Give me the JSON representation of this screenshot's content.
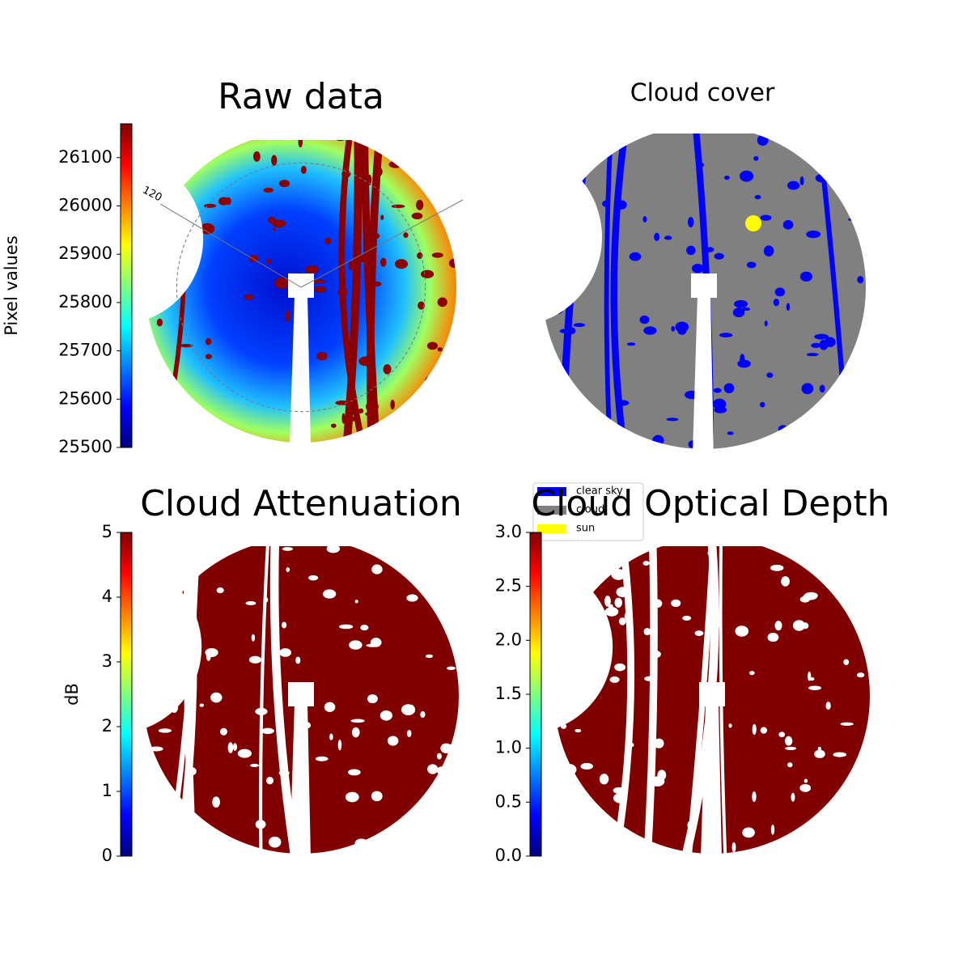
{
  "chart_data": [
    {
      "type": "image",
      "title": "Raw data",
      "colorbar_label": "Pixel values",
      "colormap": "jet",
      "ylim": [
        25500,
        26170
      ],
      "yticks": [
        25500,
        25600,
        25700,
        25800,
        25900,
        26000,
        26100
      ],
      "annotations": [
        "120"
      ]
    },
    {
      "type": "image",
      "title": "Cloud cover",
      "legend_entries": [
        {
          "name": "clear sky",
          "color": "#0000ff"
        },
        {
          "name": "cloud",
          "color": "#808080"
        },
        {
          "name": "sun",
          "color": "#ffff00"
        }
      ]
    },
    {
      "type": "image",
      "title": "Cloud Attenuation",
      "colorbar_label": "dB",
      "colormap": "jet",
      "ylim": [
        0,
        5
      ],
      "yticks": [
        0,
        1,
        2,
        3,
        4,
        5
      ]
    },
    {
      "type": "image",
      "title": "Cloud Optical Depth",
      "colormap": "jet",
      "ylim": [
        0,
        3
      ],
      "yticks": [
        {
          "value": 0,
          "label": "0.0"
        },
        0.5,
        {
          "value": 1,
          "label": "1.0"
        },
        1.5,
        {
          "value": 2,
          "label": "2.0"
        },
        2.5,
        {
          "value": 3,
          "label": "3.0"
        }
      ]
    }
  ]
}
